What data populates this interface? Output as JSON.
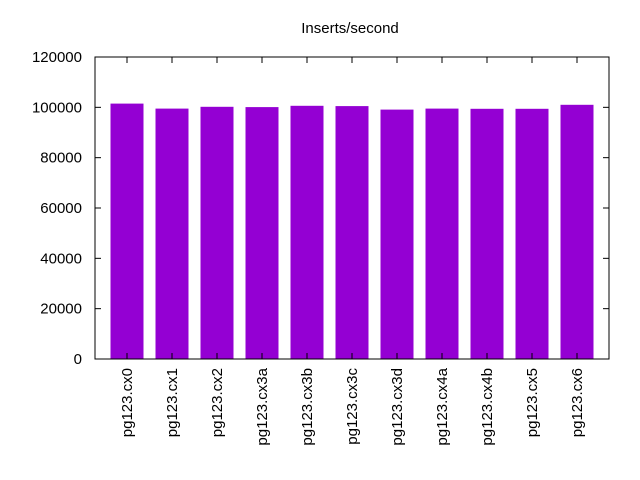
{
  "chart_data": {
    "type": "bar",
    "title": "Inserts/second",
    "xlabel": "",
    "ylabel": "",
    "categories": [
      "pg123.cx0",
      "pg123.cx1",
      "pg123.cx2",
      "pg123.cx3a",
      "pg123.cx3b",
      "pg123.cx3c",
      "pg123.cx3d",
      "pg123.cx4a",
      "pg123.cx4b",
      "pg123.cx5",
      "pg123.cx6"
    ],
    "values": [
      101500,
      99500,
      100200,
      100100,
      100600,
      100500,
      99100,
      99500,
      99400,
      99400,
      101000
    ],
    "ylim": [
      0,
      120000
    ],
    "yticks": [
      "0",
      "20000",
      "40000",
      "60000",
      "80000",
      "100000",
      "120000"
    ],
    "ytick_values": [
      0,
      20000,
      40000,
      60000,
      80000,
      100000,
      120000
    ],
    "bar_color": "#9400d3",
    "grid": false,
    "legend": "none"
  }
}
